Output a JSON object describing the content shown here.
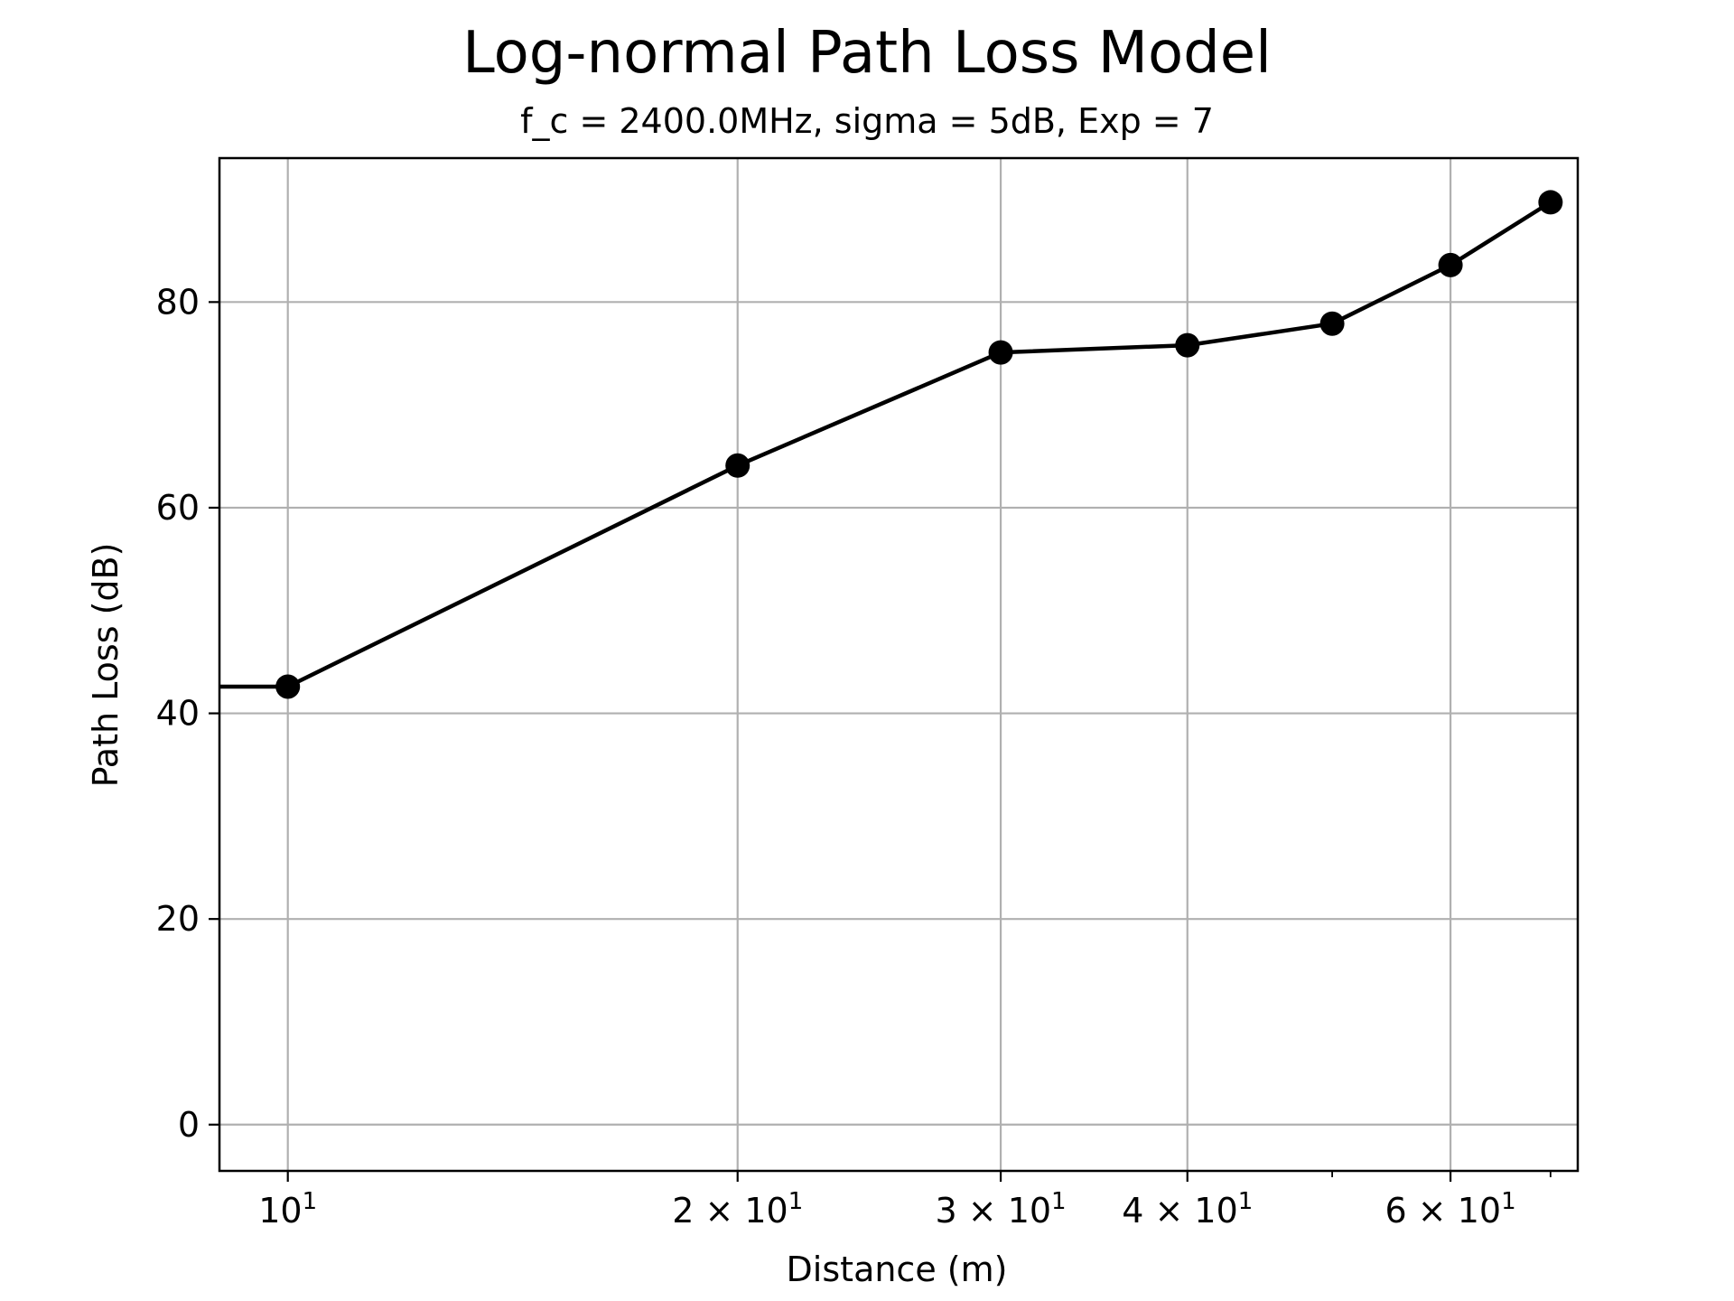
{
  "chart_data": {
    "type": "line",
    "title": "Log-normal Path Loss Model",
    "subtitle": "f_c = 2400.0MHz, sigma = 5dB, Exp = 7",
    "xlabel": "Distance (m)",
    "ylabel": "Path Loss (dB)",
    "xscale": "log",
    "xlim": [
      9.0,
      73.0
    ],
    "ylim": [
      -4.5,
      94
    ],
    "grid": true,
    "yticks": [
      0,
      20,
      40,
      60,
      80
    ],
    "xticks": [
      {
        "value": 10,
        "base": "10",
        "exp": "1"
      },
      {
        "value": 20,
        "base": "2 × 10",
        "exp": "1"
      },
      {
        "value": 30,
        "base": "3 × 10",
        "exp": "1"
      },
      {
        "value": 40,
        "base": "4 × 10",
        "exp": "1"
      },
      {
        "value": 60,
        "base": "6 × 10",
        "exp": "1"
      }
    ],
    "xminor_ticks": [
      50,
      70
    ],
    "series": [
      {
        "color": "#000000",
        "marker": "circle",
        "points": [
          {
            "x": 9.0,
            "y": 42.6,
            "marker": false
          },
          {
            "x": 10,
            "y": 42.6,
            "marker": true
          },
          {
            "x": 20,
            "y": 64.1,
            "marker": true
          },
          {
            "x": 30,
            "y": 75.1,
            "marker": true
          },
          {
            "x": 40,
            "y": 75.8,
            "marker": true
          },
          {
            "x": 50,
            "y": 77.9,
            "marker": true
          },
          {
            "x": 60,
            "y": 83.6,
            "marker": true
          },
          {
            "x": 70,
            "y": 89.7,
            "marker": true
          }
        ]
      }
    ]
  }
}
